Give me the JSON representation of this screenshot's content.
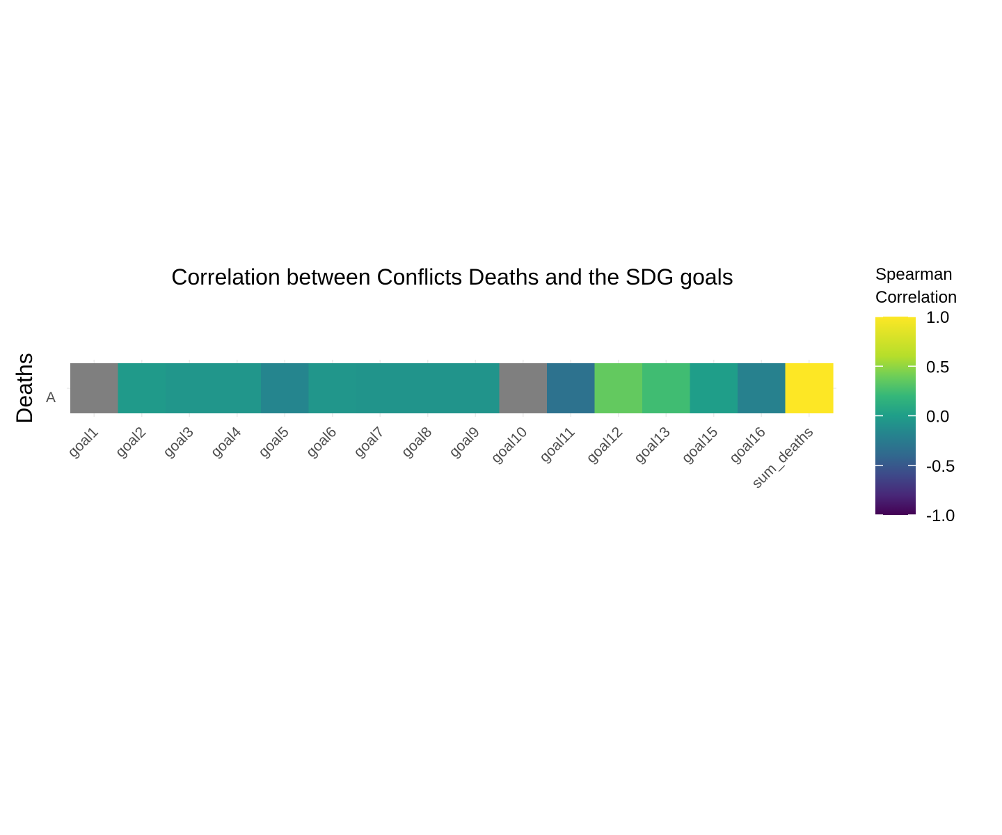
{
  "chart_data": {
    "type": "heatmap",
    "title": "Correlation between Conflicts Deaths and the SDG goals",
    "xlabel": "",
    "ylabel": "Deaths",
    "x_categories": [
      "goal1",
      "goal2",
      "goal3",
      "goal4",
      "goal5",
      "goal6",
      "goal7",
      "goal8",
      "goal9",
      "goal10",
      "goal11",
      "goal12",
      "goal13",
      "goal15",
      "goal16",
      "sum_deaths"
    ],
    "y_categories": [
      "A"
    ],
    "values": [
      [
        null,
        -0.03,
        -0.06,
        -0.06,
        -0.18,
        -0.06,
        -0.07,
        -0.07,
        -0.07,
        null,
        -0.32,
        0.36,
        0.24,
        0.0,
        -0.21,
        1.0
      ]
    ],
    "na_color": "#7f7f7f",
    "color_scale": "viridis",
    "legend": {
      "title_line1": "Spearman",
      "title_line2": "Correlation",
      "range": [
        -1.0,
        1.0
      ],
      "ticks": [
        "1.0",
        "0.5",
        "0.0",
        "-0.5",
        "-1.0"
      ],
      "tick_values": [
        1.0,
        0.5,
        0.0,
        -0.5,
        -1.0
      ],
      "position": "right"
    },
    "grid": true
  }
}
